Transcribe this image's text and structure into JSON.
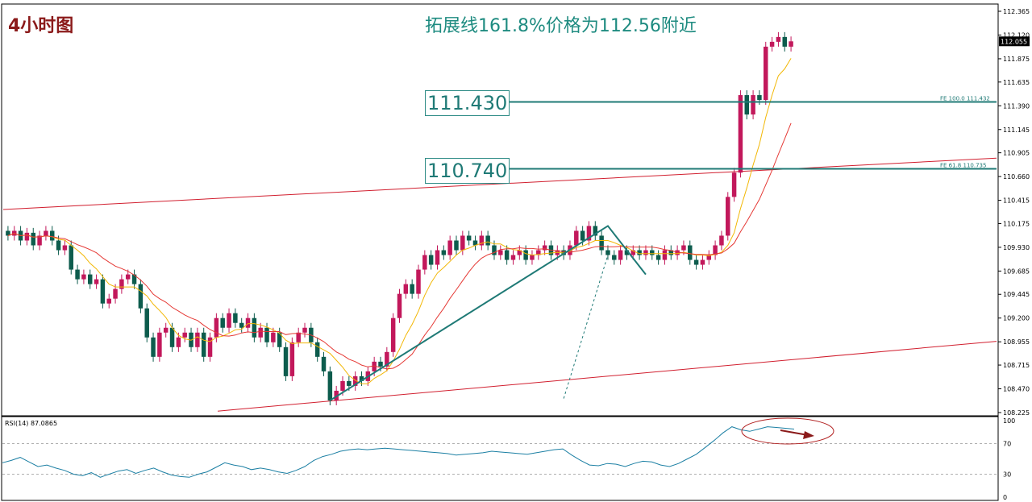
{
  "page": {
    "title": "4小时图",
    "headline": "拓展线161.8%价格为112.56附近"
  },
  "chart_data": [
    {
      "type": "candlestick",
      "panel": "price",
      "ylim": [
        108.225,
        112.365
      ],
      "y_ticks": [
        "112.365",
        "112.120",
        "111.875",
        "111.635",
        "111.390",
        "111.145",
        "110.905",
        "110.660",
        "110.415",
        "110.175",
        "109.930",
        "109.685",
        "109.445",
        "109.200",
        "108.955",
        "108.715",
        "108.470",
        "108.225"
      ],
      "current_price": "112.055",
      "levels": [
        {
          "label": "111.430",
          "value": 111.43,
          "fib_text": "FE 100.0  111.432"
        },
        {
          "label": "110.740",
          "value": 110.74,
          "fib_text": "FE 61.8  110.735"
        }
      ],
      "candles": [
        [
          110.1,
          110.05
        ],
        [
          110.05,
          110.1
        ],
        [
          110.1,
          110.0
        ],
        [
          110.0,
          110.08
        ],
        [
          110.08,
          109.95
        ],
        [
          109.95,
          110.05
        ],
        [
          110.05,
          110.1
        ],
        [
          110.1,
          110.0
        ],
        [
          110.0,
          109.9
        ],
        [
          109.9,
          109.95
        ],
        [
          109.95,
          109.7
        ],
        [
          109.7,
          109.6
        ],
        [
          109.6,
          109.65
        ],
        [
          109.65,
          109.55
        ],
        [
          109.55,
          109.6
        ],
        [
          109.6,
          109.35
        ],
        [
          109.35,
          109.4
        ],
        [
          109.4,
          109.5
        ],
        [
          109.5,
          109.6
        ],
        [
          109.6,
          109.65
        ],
        [
          109.65,
          109.55
        ],
        [
          109.55,
          109.3
        ],
        [
          109.3,
          109.0
        ],
        [
          109.0,
          108.8
        ],
        [
          108.8,
          109.05
        ],
        [
          109.05,
          109.1
        ],
        [
          109.1,
          108.9
        ],
        [
          108.9,
          109.0
        ],
        [
          109.0,
          109.05
        ],
        [
          109.05,
          108.9
        ],
        [
          108.9,
          109.05
        ],
        [
          109.05,
          108.8
        ],
        [
          108.8,
          109.0
        ],
        [
          109.0,
          109.2
        ],
        [
          109.2,
          109.1
        ],
        [
          109.1,
          109.25
        ],
        [
          109.25,
          109.15
        ],
        [
          109.15,
          109.1
        ],
        [
          109.1,
          109.2
        ],
        [
          109.2,
          109.0
        ],
        [
          109.0,
          109.1
        ],
        [
          109.1,
          108.95
        ],
        [
          108.95,
          109.05
        ],
        [
          109.05,
          108.9
        ],
        [
          108.9,
          108.6
        ],
        [
          108.6,
          108.95
        ],
        [
          108.95,
          109.05
        ],
        [
          109.05,
          109.1
        ],
        [
          109.1,
          108.95
        ],
        [
          108.95,
          108.8
        ],
        [
          108.8,
          108.65
        ],
        [
          108.65,
          108.35
        ],
        [
          108.35,
          108.45
        ],
        [
          108.45,
          108.55
        ],
        [
          108.55,
          108.5
        ],
        [
          108.5,
          108.6
        ],
        [
          108.6,
          108.55
        ],
        [
          108.55,
          108.65
        ],
        [
          108.65,
          108.75
        ],
        [
          108.75,
          108.7
        ],
        [
          108.7,
          108.85
        ],
        [
          108.85,
          109.2
        ],
        [
          109.2,
          109.45
        ],
        [
          109.45,
          109.55
        ],
        [
          109.55,
          109.45
        ],
        [
          109.45,
          109.7
        ],
        [
          109.7,
          109.85
        ],
        [
          109.85,
          109.75
        ],
        [
          109.75,
          109.9
        ],
        [
          109.9,
          109.85
        ],
        [
          109.85,
          110.0
        ],
        [
          110.0,
          109.9
        ],
        [
          109.9,
          110.05
        ],
        [
          110.05,
          110.0
        ],
        [
          110.0,
          109.95
        ],
        [
          109.95,
          110.05
        ],
        [
          110.05,
          109.95
        ],
        [
          109.95,
          109.85
        ],
        [
          109.85,
          109.9
        ],
        [
          109.9,
          109.8
        ],
        [
          109.8,
          109.85
        ],
        [
          109.85,
          109.9
        ],
        [
          109.9,
          109.8
        ],
        [
          109.8,
          109.85
        ],
        [
          109.85,
          109.9
        ],
        [
          109.9,
          109.95
        ],
        [
          109.95,
          109.85
        ],
        [
          109.85,
          109.9
        ],
        [
          109.9,
          109.85
        ],
        [
          109.85,
          109.95
        ],
        [
          109.95,
          110.1
        ],
        [
          110.1,
          110.0
        ],
        [
          110.0,
          110.15
        ],
        [
          110.15,
          110.05
        ],
        [
          110.05,
          109.9
        ],
        [
          109.9,
          109.85
        ],
        [
          109.85,
          109.8
        ],
        [
          109.8,
          109.9
        ],
        [
          109.9,
          109.85
        ],
        [
          109.85,
          109.9
        ],
        [
          109.9,
          109.85
        ],
        [
          109.85,
          109.9
        ],
        [
          109.9,
          109.85
        ],
        [
          109.85,
          109.8
        ],
        [
          109.8,
          109.9
        ],
        [
          109.9,
          109.85
        ],
        [
          109.85,
          109.9
        ],
        [
          109.9,
          109.95
        ],
        [
          109.95,
          109.8
        ],
        [
          109.8,
          109.75
        ],
        [
          109.75,
          109.8
        ],
        [
          109.8,
          109.85
        ],
        [
          109.85,
          109.95
        ],
        [
          109.95,
          110.05
        ],
        [
          110.05,
          110.45
        ],
        [
          110.45,
          110.7
        ],
        [
          110.7,
          111.5
        ],
        [
          111.5,
          111.3
        ],
        [
          111.3,
          111.5
        ],
        [
          111.5,
          111.45
        ],
        [
          111.45,
          112.0
        ],
        [
          112.0,
          112.05
        ],
        [
          112.05,
          112.1
        ],
        [
          112.1,
          112.0
        ],
        [
          112.0,
          112.055
        ]
      ]
    },
    {
      "type": "line",
      "panel": "rsi",
      "title": "RSI(14) 87.0865",
      "ylim": [
        0,
        100
      ],
      "y_ticks": [
        "100",
        "70",
        "30",
        "0"
      ],
      "values": [
        45,
        48,
        52,
        46,
        40,
        42,
        38,
        35,
        30,
        28,
        32,
        26,
        30,
        34,
        36,
        31,
        35,
        38,
        33,
        29,
        27,
        26,
        30,
        33,
        39,
        45,
        42,
        40,
        36,
        38,
        36,
        33,
        31,
        35,
        40,
        48,
        53,
        56,
        60,
        62,
        63,
        62,
        63,
        64,
        63,
        62,
        61,
        60,
        59,
        58,
        57,
        55,
        56,
        57,
        58,
        60,
        59,
        58,
        57,
        56,
        58,
        60,
        62,
        63,
        55,
        48,
        42,
        41,
        44,
        43,
        40,
        44,
        47,
        46,
        42,
        40,
        44,
        50,
        56,
        65,
        74,
        84,
        92,
        88,
        86,
        89,
        92,
        91,
        90,
        89
      ]
    }
  ]
}
